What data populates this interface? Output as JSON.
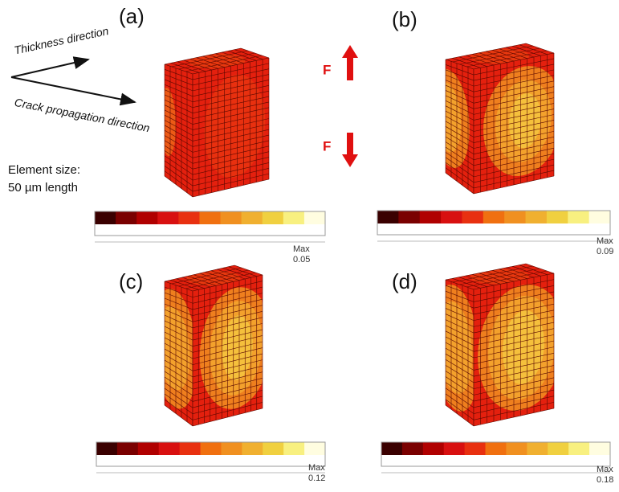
{
  "panels": [
    {
      "label": "(a)",
      "max_label": "Max",
      "max": 0.05
    },
    {
      "label": "(b)",
      "max_label": "Max",
      "max": 0.09
    },
    {
      "label": "(c)",
      "max_label": "Max",
      "max": 0.12
    },
    {
      "label": "(d)",
      "max_label": "Max",
      "max": 0.18
    }
  ],
  "annotations": {
    "thickness": "Thickness direction",
    "crack": "Crack propagation direction",
    "element_size": "Element size:",
    "element_length": "50 µm length",
    "force_top": "F",
    "force_bottom": "F"
  }
}
